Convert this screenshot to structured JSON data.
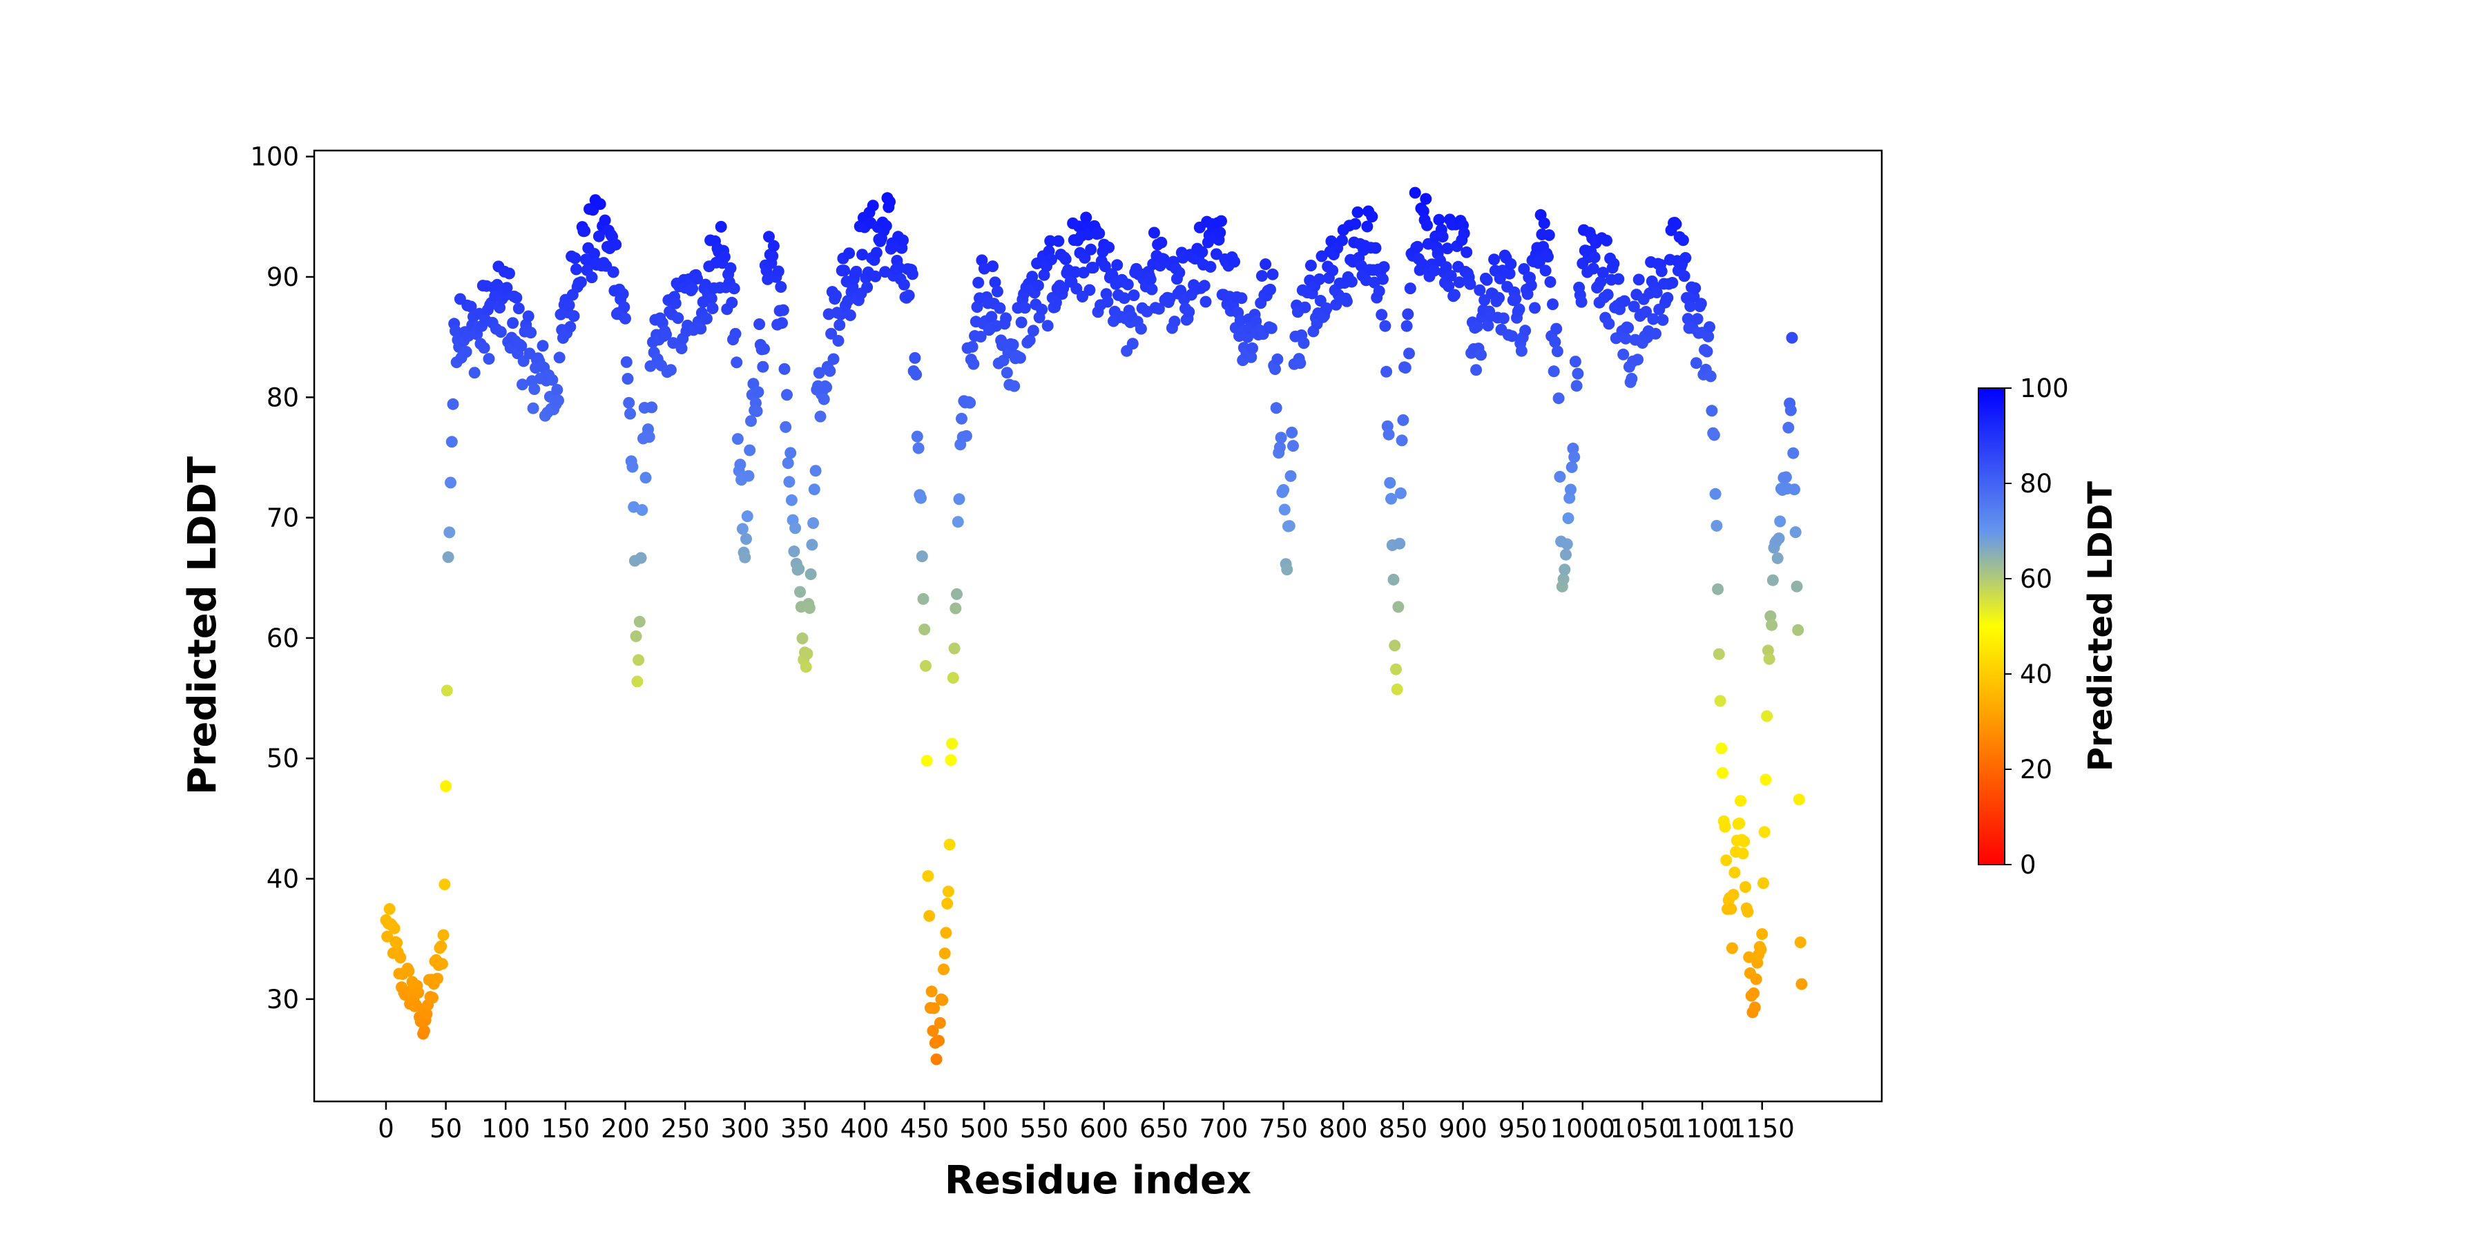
{
  "chart_data": {
    "type": "scatter",
    "title": "",
    "xlabel": "Residue index",
    "ylabel": "Predicted LDDT",
    "xlim": [
      -60,
      1250
    ],
    "ylim": [
      21.5,
      100.5
    ],
    "x_ticks": [
      0,
      50,
      100,
      150,
      200,
      250,
      300,
      350,
      400,
      450,
      500,
      550,
      600,
      650,
      700,
      750,
      800,
      850,
      900,
      950,
      1000,
      1050,
      1100,
      1150
    ],
    "y_ticks": [
      30,
      40,
      50,
      60,
      70,
      80,
      90,
      100
    ],
    "grid": false,
    "colorbar": {
      "label": "Predicted LDDT",
      "min": 0,
      "max": 100,
      "ticks": [
        0,
        20,
        40,
        60,
        80,
        100
      ],
      "colormap": [
        {
          "value": 0,
          "color": "#ff0000"
        },
        {
          "value": 40,
          "color": "#ffcc00"
        },
        {
          "value": 50,
          "color": "#ffff00"
        },
        {
          "value": 70,
          "color": "#6495ed"
        },
        {
          "value": 100,
          "color": "#0000ff"
        }
      ]
    },
    "series": [
      {
        "color_by": "value",
        "anchors": [
          [
            0,
            36
          ],
          [
            5,
            35.5
          ],
          [
            10,
            33
          ],
          [
            15,
            31.5
          ],
          [
            20,
            31
          ],
          [
            25,
            30
          ],
          [
            30,
            28
          ],
          [
            35,
            29.5
          ],
          [
            40,
            31.5
          ],
          [
            45,
            33
          ],
          [
            48,
            35
          ],
          [
            50,
            47
          ],
          [
            51,
            56
          ],
          [
            52,
            66
          ],
          [
            55,
            77
          ],
          [
            58,
            86
          ],
          [
            62,
            87
          ],
          [
            70,
            85
          ],
          [
            80,
            86
          ],
          [
            100,
            88
          ],
          [
            120,
            83
          ],
          [
            140,
            80
          ],
          [
            160,
            92
          ],
          [
            175,
            93
          ],
          [
            190,
            92
          ],
          [
            200,
            86
          ],
          [
            205,
            76
          ],
          [
            208,
            66
          ],
          [
            210,
            55
          ],
          [
            212,
            63
          ],
          [
            215,
            75
          ],
          [
            225,
            83
          ],
          [
            240,
            86
          ],
          [
            260,
            88
          ],
          [
            280,
            92
          ],
          [
            290,
            88
          ],
          [
            295,
            76
          ],
          [
            300,
            65
          ],
          [
            305,
            78
          ],
          [
            320,
            90
          ],
          [
            330,
            88
          ],
          [
            340,
            70
          ],
          [
            350,
            58
          ],
          [
            355,
            64
          ],
          [
            360,
            80
          ],
          [
            380,
            89
          ],
          [
            400,
            92
          ],
          [
            420,
            94
          ],
          [
            440,
            87
          ],
          [
            445,
            76
          ],
          [
            450,
            62
          ],
          [
            452,
            51
          ],
          [
            453,
            42
          ],
          [
            455,
            30
          ],
          [
            460,
            26
          ],
          [
            465,
            30
          ],
          [
            470,
            38
          ],
          [
            472,
            49
          ],
          [
            475,
            60
          ],
          [
            478,
            68
          ],
          [
            480,
            75
          ],
          [
            490,
            85
          ],
          [
            500,
            90
          ],
          [
            520,
            83
          ],
          [
            540,
            88
          ],
          [
            560,
            90
          ],
          [
            580,
            92
          ],
          [
            600,
            90
          ],
          [
            620,
            86
          ],
          [
            640,
            91
          ],
          [
            660,
            88
          ],
          [
            680,
            91
          ],
          [
            700,
            92
          ],
          [
            720,
            85
          ],
          [
            740,
            89
          ],
          [
            750,
            72
          ],
          [
            753,
            65
          ],
          [
            760,
            85
          ],
          [
            780,
            90
          ],
          [
            800,
            91
          ],
          [
            820,
            93
          ],
          [
            835,
            88
          ],
          [
            840,
            70
          ],
          [
            843,
            60
          ],
          [
            845,
            57
          ],
          [
            850,
            80
          ],
          [
            860,
            94
          ],
          [
            880,
            93
          ],
          [
            900,
            91
          ],
          [
            910,
            85
          ],
          [
            930,
            89
          ],
          [
            950,
            87
          ],
          [
            970,
            94
          ],
          [
            980,
            80
          ],
          [
            983,
            63
          ],
          [
            990,
            72
          ],
          [
            1000,
            92
          ],
          [
            1020,
            90
          ],
          [
            1040,
            84
          ],
          [
            1050,
            88
          ],
          [
            1060,
            88
          ],
          [
            1080,
            92
          ],
          [
            1095,
            86
          ],
          [
            1105,
            84
          ],
          [
            1110,
            77
          ],
          [
            1113,
            63
          ],
          [
            1115,
            55
          ],
          [
            1118,
            46
          ],
          [
            1120,
            40
          ],
          [
            1125,
            35
          ],
          [
            1130,
            46
          ],
          [
            1135,
            43
          ],
          [
            1140,
            31
          ],
          [
            1145,
            30
          ],
          [
            1150,
            37
          ],
          [
            1155,
            58
          ],
          [
            1160,
            66
          ],
          [
            1165,
            70
          ],
          [
            1170,
            74
          ],
          [
            1175,
            82
          ],
          [
            1180,
            60
          ],
          [
            1182,
            36
          ],
          [
            1183,
            31
          ]
        ]
      }
    ]
  }
}
